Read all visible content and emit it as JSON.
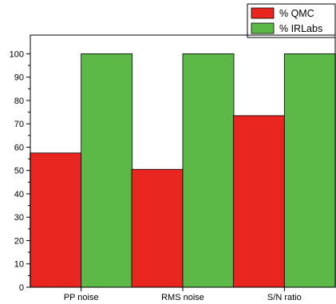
{
  "chart_data": {
    "type": "bar",
    "categories": [
      "PP noise",
      "RMS noise",
      "S/N ratio"
    ],
    "series": [
      {
        "name": "% QMC",
        "values": [
          57.5,
          50.5,
          73.5
        ],
        "color": "#e8261f"
      },
      {
        "name": "% IRLabs",
        "values": [
          100,
          100,
          100
        ],
        "color": "#5cb947"
      }
    ],
    "ylim": [
      0,
      108
    ],
    "yticks": [
      0,
      10,
      20,
      30,
      40,
      50,
      60,
      70,
      80,
      90,
      100
    ],
    "title": "",
    "xlabel": "",
    "ylabel": "",
    "grid": false,
    "legend": "top-right"
  }
}
